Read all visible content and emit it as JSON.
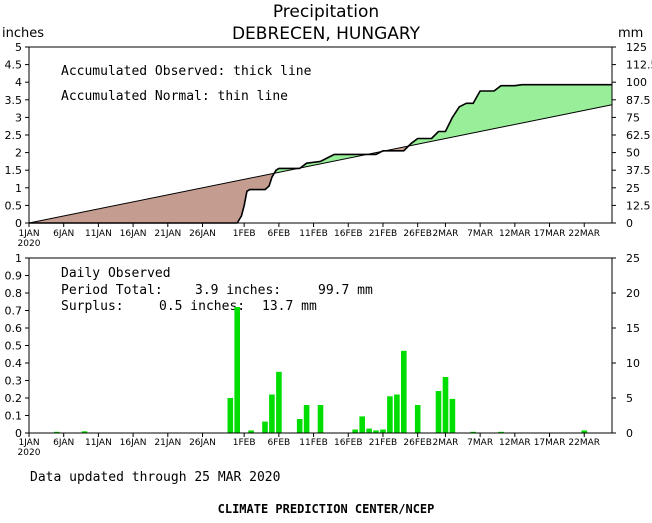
{
  "title": "Precipitation",
  "subtitle": "DEBRECEN, HUNGARY",
  "footer": {
    "updated": "Data updated through 25 MAR 2020",
    "credit": "CLIMATE PREDICTION CENTER/NCEP"
  },
  "chart_data": [
    {
      "type": "area",
      "name": "accumulated",
      "ylabel_left": "inches",
      "ylabel_right": "mm",
      "ylim": [
        0,
        5
      ],
      "yticks_left": [
        "0",
        "0.5",
        "1",
        "1.5",
        "2",
        "2.5",
        "3",
        "3.5",
        "4",
        "4.5",
        "5"
      ],
      "yticks_right": [
        "0",
        "12.5",
        "25",
        "37.5",
        "50",
        "62.5",
        "75",
        "87.5",
        "100",
        "112.5",
        "125"
      ],
      "xlim": [
        1,
        85
      ],
      "xtick_days": [
        1,
        6,
        11,
        16,
        21,
        26,
        32,
        37,
        42,
        47,
        52,
        57,
        61,
        66,
        71,
        76,
        81
      ],
      "xtick_labels": [
        "1JAN",
        "6JAN",
        "11JAN",
        "16JAN",
        "21JAN",
        "26JAN",
        "1FEB",
        "6FEB",
        "11FEB",
        "16FEB",
        "21FEB",
        "26FEB",
        "2MAR",
        "7MAR",
        "12MAR",
        "17MAR",
        "22MAR"
      ],
      "xtick_year": "2020",
      "legend": [
        "Accumulated Observed: thick line",
        "Accumulated Normal: thin line"
      ],
      "normal": {
        "x": [
          1,
          85
        ],
        "y": [
          0,
          3.36
        ]
      },
      "observed": {
        "x": [
          1,
          31,
          31.6,
          32,
          32.4,
          32.8,
          33.5,
          35,
          35.6,
          36,
          36.6,
          37,
          40,
          41,
          43,
          44,
          45,
          46,
          47,
          48,
          51,
          52,
          53,
          55,
          56,
          57,
          58,
          59,
          60,
          61,
          62,
          63,
          64,
          65,
          66,
          67,
          68,
          69,
          70,
          71,
          72,
          80,
          85
        ],
        "y": [
          0,
          0,
          0.2,
          0.5,
          0.9,
          0.95,
          0.95,
          0.95,
          1.05,
          1.3,
          1.5,
          1.55,
          1.55,
          1.7,
          1.75,
          1.85,
          1.95,
          1.95,
          1.95,
          1.95,
          1.95,
          2.05,
          2.05,
          2.05,
          2.25,
          2.4,
          2.4,
          2.4,
          2.6,
          2.6,
          3.0,
          3.3,
          3.4,
          3.4,
          3.75,
          3.75,
          3.75,
          3.9,
          3.9,
          3.9,
          3.93,
          3.93,
          3.93
        ]
      }
    },
    {
      "type": "bar",
      "name": "daily",
      "ylim_left": [
        0,
        1
      ],
      "yticks_left": [
        "0",
        "0.1",
        "0.2",
        "0.3",
        "0.4",
        "0.5",
        "0.6",
        "0.7",
        "0.8",
        "0.9",
        "1"
      ],
      "ylim_right": [
        0,
        25
      ],
      "yticks_right": [
        "0",
        "5",
        "10",
        "15",
        "20",
        "25"
      ],
      "xlim": [
        1,
        85
      ],
      "xtick_days": [
        1,
        6,
        11,
        16,
        21,
        26,
        32,
        37,
        42,
        47,
        52,
        57,
        61,
        66,
        71,
        76,
        81
      ],
      "xtick_labels": [
        "1JAN",
        "6JAN",
        "11JAN",
        "16JAN",
        "21JAN",
        "26JAN",
        "1FEB",
        "6FEB",
        "11FEB",
        "16FEB",
        "21FEB",
        "26FEB",
        "2MAR",
        "7MAR",
        "12MAR",
        "17MAR",
        "22MAR"
      ],
      "xtick_year": "2020",
      "summary": {
        "heading": "Daily Observed",
        "period_label": "Period Total:",
        "period_in": "3.9 inches:",
        "period_mm": "99.7 mm",
        "surplus_label": "Surplus:",
        "surplus_in": "0.5 inches:",
        "surplus_mm": "13.7 mm"
      },
      "days": [
        5,
        9,
        30,
        31,
        33,
        35,
        36,
        37,
        40,
        41,
        43,
        48,
        49,
        50,
        51,
        52,
        53,
        54,
        55,
        57,
        60,
        61,
        62,
        65,
        69,
        81
      ],
      "values": [
        0.005,
        0.01,
        0.2,
        0.72,
        0.015,
        0.065,
        0.22,
        0.35,
        0.08,
        0.16,
        0.16,
        0.02,
        0.095,
        0.025,
        0.015,
        0.02,
        0.21,
        0.22,
        0.47,
        0.16,
        0.24,
        0.32,
        0.195,
        0.005,
        0.005,
        0.015
      ],
      "bar_color": "#00dd00"
    }
  ],
  "colors": {
    "deficit_fill": "#c49c90",
    "surplus_fill": "#99ee99",
    "bar": "#00dd00",
    "axis": "#000000"
  }
}
